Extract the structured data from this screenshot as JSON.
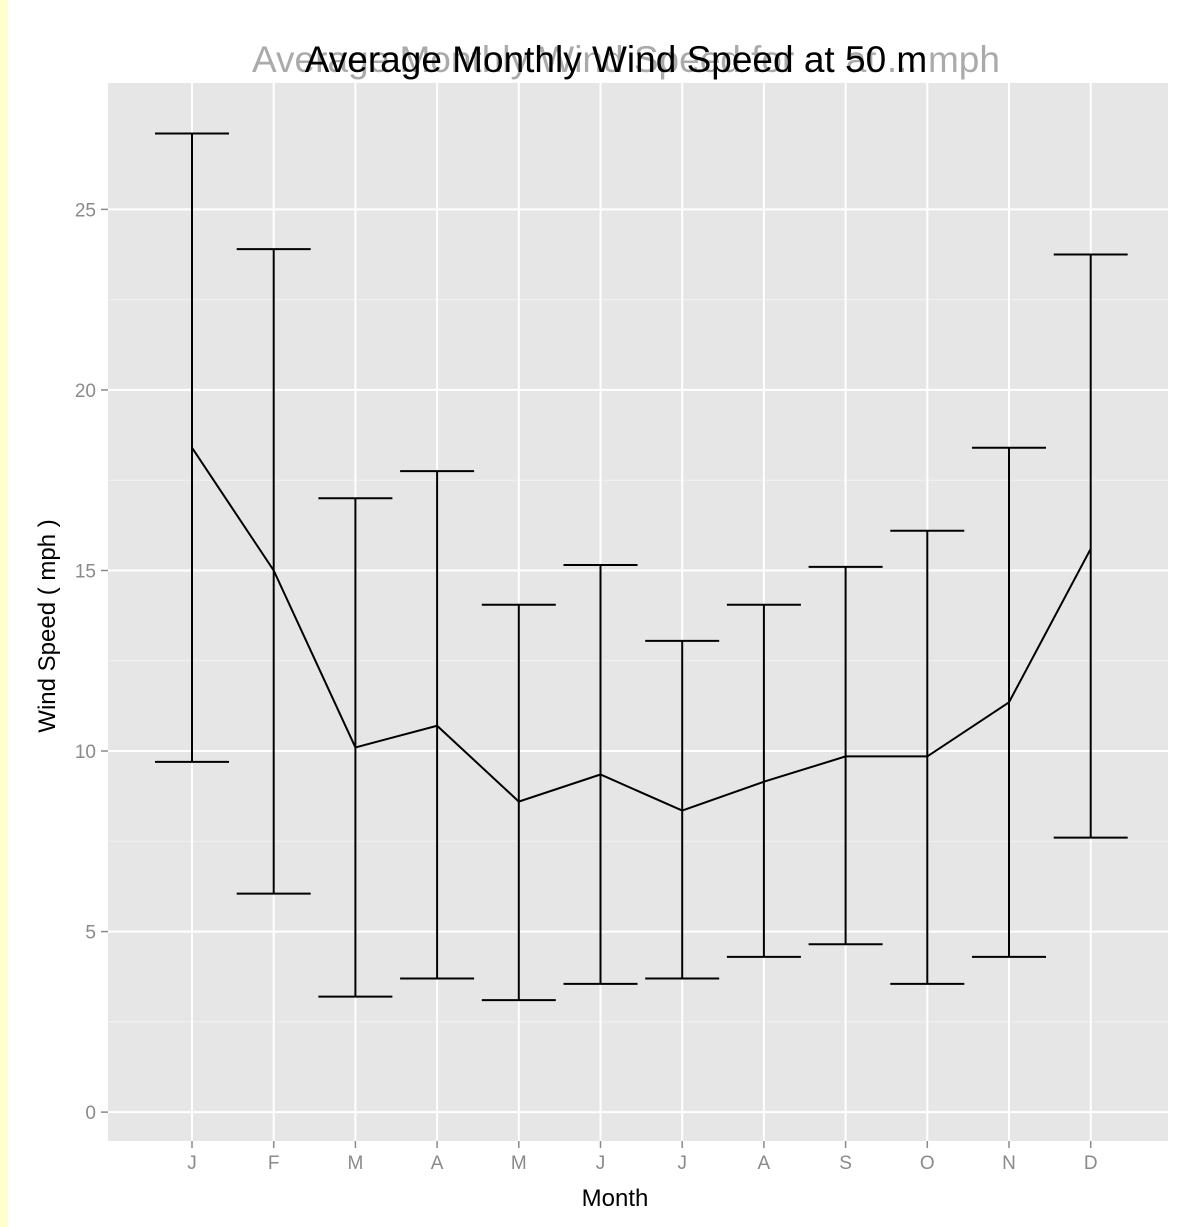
{
  "chart_data": {
    "type": "line",
    "title": "Average Monthly Wind Speed at 50 m",
    "title_overlay": "Average Monthly Wind Speed for ... at ... mph",
    "xlabel": "Month",
    "ylabel": "Wind Speed ( mph )",
    "categories": [
      "J",
      "F",
      "M",
      "A",
      "M",
      "J",
      "J",
      "A",
      "S",
      "O",
      "N",
      "D"
    ],
    "series": [
      {
        "mean": [
          18.4,
          15.0,
          10.1,
          10.7,
          8.6,
          9.35,
          8.35,
          9.15,
          9.85,
          9.85,
          11.35,
          15.6
        ],
        "upper": [
          27.1,
          23.9,
          17.0,
          17.75,
          14.05,
          15.15,
          13.05,
          14.05,
          15.1,
          16.1,
          18.4,
          23.75
        ],
        "lower": [
          9.7,
          6.05,
          3.2,
          3.7,
          3.1,
          3.55,
          3.7,
          4.3,
          4.65,
          3.55,
          4.3,
          7.6
        ]
      }
    ],
    "yticks": [
      0,
      5,
      10,
      15,
      20,
      25
    ],
    "ylim": [
      -0.8,
      28.5
    ],
    "grid": true,
    "legend": "none"
  }
}
